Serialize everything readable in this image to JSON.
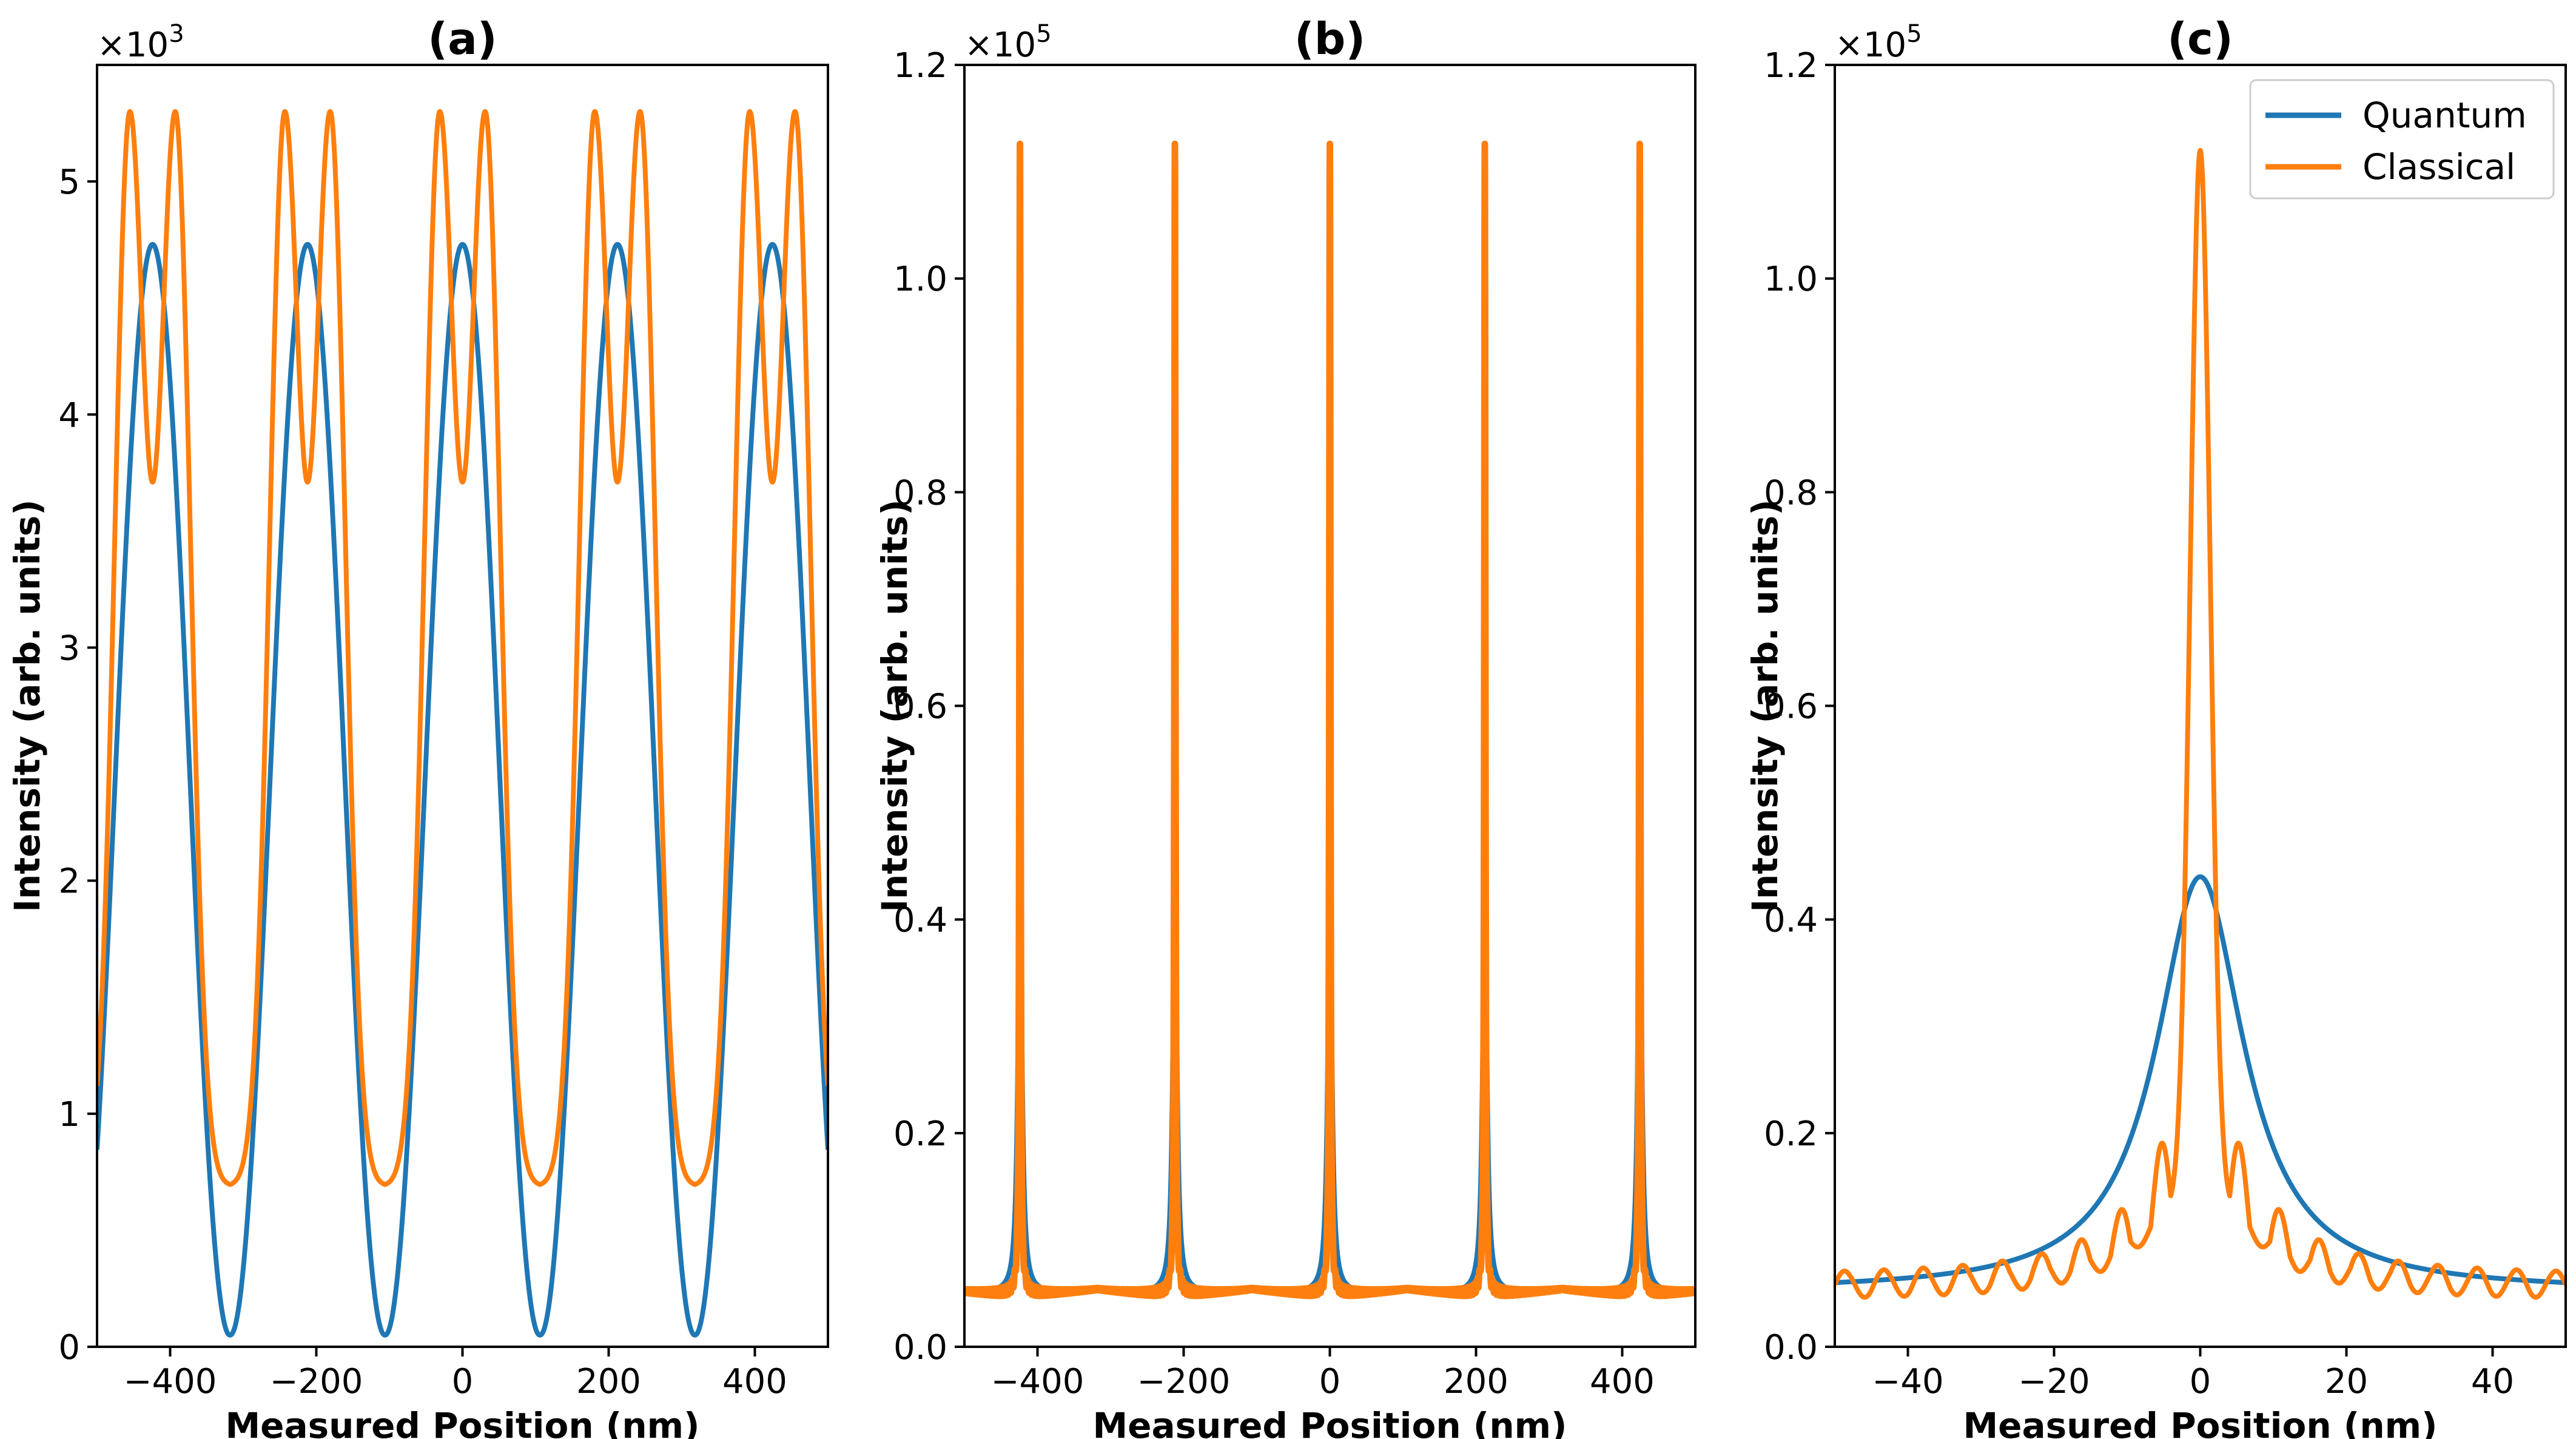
{
  "colors": {
    "quantum": "#1f77b4",
    "classical": "#ff7f0e",
    "axes": "#000000"
  },
  "chart_data": [
    {
      "id": "a",
      "type": "line",
      "title": "(a)",
      "xlabel": "Measured Position (nm)",
      "ylabel": "Intensity (arb. units)",
      "y_multiplier": "×10",
      "y_multiplier_exp": "3",
      "xlim": [
        -500,
        500
      ],
      "ylim": [
        0,
        5.5
      ],
      "xticks": [
        -400,
        -200,
        0,
        200,
        400
      ],
      "xtick_labels": [
        "−400",
        "−200",
        "0",
        "200",
        "400"
      ],
      "yticks": [
        0,
        1,
        2,
        3,
        4,
        5
      ],
      "ytick_labels": [
        "0",
        "1",
        "2",
        "3",
        "4",
        "5"
      ],
      "model": {
        "period": 212,
        "quantum_peak": 4.73,
        "quantum_min": 0.05,
        "classical_peak": 5.3,
        "classical_dip": 3.71,
        "classical_floor": 0.69,
        "classical_split": 31
      },
      "series": [
        {
          "name": "Quantum",
          "peaks_x": [
            -424,
            -212,
            0,
            212,
            424
          ],
          "peak_y": 4.73,
          "min_y": 0.05
        },
        {
          "name": "Classical",
          "peak_y": 5.3,
          "center_dip_y": 3.71,
          "floor_y": 0.69
        }
      ]
    },
    {
      "id": "b",
      "type": "line",
      "title": "(b)",
      "xlabel": "Measured Position (nm)",
      "ylabel": "Intensity (arb. units)",
      "y_multiplier": "×10",
      "y_multiplier_exp": "5",
      "xlim": [
        -500,
        500
      ],
      "ylim": [
        0,
        1.2
      ],
      "xticks": [
        -400,
        -200,
        0,
        200,
        400
      ],
      "xtick_labels": [
        "−400",
        "−200",
        "0",
        "200",
        "400"
      ],
      "yticks": [
        0,
        0.2,
        0.4,
        0.6,
        0.8,
        1.0,
        1.2
      ],
      "ytick_labels": [
        "0.0",
        "0.2",
        "0.4",
        "0.6",
        "0.8",
        "1.0",
        "1.2"
      ],
      "model": {
        "period": 212,
        "base": 0.05
      },
      "series": [
        {
          "name": "Quantum",
          "peaks_x": [
            -424,
            -212,
            0,
            212,
            424
          ],
          "peak_y": 0.44,
          "base_y": 0.05
        },
        {
          "name": "Classical",
          "peaks_x": [
            -424,
            -212,
            0,
            212,
            424
          ],
          "peak_y": 1.12,
          "base_y": 0.05
        }
      ]
    },
    {
      "id": "c",
      "type": "line",
      "title": "(c)",
      "xlabel": "Measured Position (nm)",
      "ylabel": "Intensity (arb. units)",
      "y_multiplier": "×10",
      "y_multiplier_exp": "5",
      "xlim": [
        -50,
        50
      ],
      "ylim": [
        0,
        1.2
      ],
      "xticks": [
        -40,
        -20,
        0,
        20,
        40
      ],
      "xtick_labels": [
        "−40",
        "−20",
        "0",
        "20",
        "40"
      ],
      "yticks": [
        0,
        0.2,
        0.4,
        0.6,
        0.8,
        1.0,
        1.2
      ],
      "ytick_labels": [
        "0.0",
        "0.2",
        "0.4",
        "0.6",
        "0.8",
        "1.0",
        "1.2"
      ],
      "legend": {
        "position": "top-right",
        "entries": [
          "Quantum",
          "Classical"
        ]
      },
      "series": [
        {
          "name": "Quantum",
          "peak_x": 0,
          "peak_y": 0.44,
          "edge_y": 0.062
        },
        {
          "name": "Classical",
          "peak_x": 0,
          "peak_y": 1.12,
          "side_peaks": [
            [
              -6,
              0.245
            ],
            [
              6,
              0.245
            ],
            [
              -11.5,
              0.16
            ],
            [
              11.5,
              0.16
            ]
          ],
          "edge_y": 0.062
        }
      ]
    }
  ]
}
